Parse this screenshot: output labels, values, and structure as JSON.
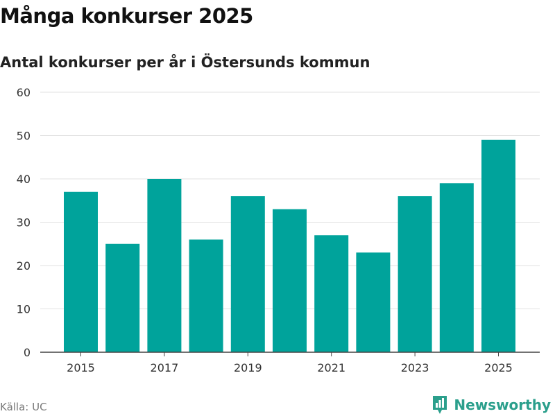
{
  "title": "Många konkurser 2025",
  "subtitle": "Antal konkurser per år i Östersunds kommun",
  "source": "Källa: UC",
  "brand": {
    "name": "Newsworthy",
    "color": "#2b9f8c",
    "icon": "bar-chart-pin-icon"
  },
  "chart_data": {
    "type": "bar",
    "categories": [
      2015,
      2016,
      2017,
      2018,
      2019,
      2020,
      2021,
      2022,
      2023,
      2024,
      2025
    ],
    "values": [
      37,
      25,
      40,
      26,
      36,
      33,
      27,
      23,
      36,
      39,
      49
    ],
    "x_tick_labels": [
      "2015",
      "2017",
      "2019",
      "2021",
      "2023",
      "2025"
    ],
    "y_ticks": [
      0,
      10,
      20,
      30,
      40,
      50,
      60
    ],
    "ylim": [
      0,
      60
    ],
    "grid": true,
    "bar_color": "#00a39b"
  }
}
